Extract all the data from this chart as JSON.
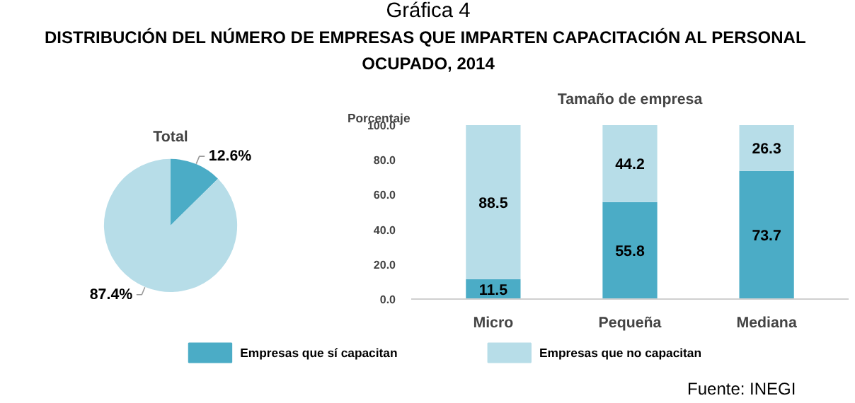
{
  "chart_data": [
    {
      "type": "pie",
      "title": "Total",
      "annotations": [
        "Gráfica 4",
        "DISTRIBUCIÓN DEL NÚMERO DE EMPRESAS QUE IMPARTEN  CAPACITACIÓN AL PERSONAL OCUPADO, 2014"
      ],
      "categories": [
        null,
        null
      ],
      "values": [
        12.6,
        87.4
      ],
      "colors": [
        "#4bacc6",
        "#b7dde8"
      ],
      "value_labels": [
        "12.6%",
        "87.4%"
      ]
    },
    {
      "type": "bar",
      "title": "Tamaño de empresa",
      "ylabel": "Porcentaje",
      "categories": [
        "Micro",
        "Pequeña",
        "Mediana"
      ],
      "stacked": true,
      "series": [
        {
          "name": "Empresas que sí capacitan",
          "color": "#4bacc6",
          "values": [
            11.5,
            55.8,
            73.7
          ]
        },
        {
          "name": "Empresas que no capacitan",
          "color": "#b7dde8",
          "values": [
            88.5,
            44.2,
            26.3
          ]
        }
      ],
      "ylim": [
        0,
        100
      ],
      "yticks": [
        {
          "value": 0,
          "label": "0.0"
        },
        {
          "value": 20,
          "label": "20.0"
        },
        {
          "value": 40,
          "label": "40.0"
        },
        {
          "value": 60,
          "label": "60.0"
        },
        {
          "value": 80,
          "label": "80.0"
        },
        {
          "value": 100,
          "label": "100.0"
        }
      ],
      "data_labels": true,
      "legend": "bottom",
      "grid": false,
      "annotations": [
        "Fuente: INEGI"
      ]
    }
  ]
}
